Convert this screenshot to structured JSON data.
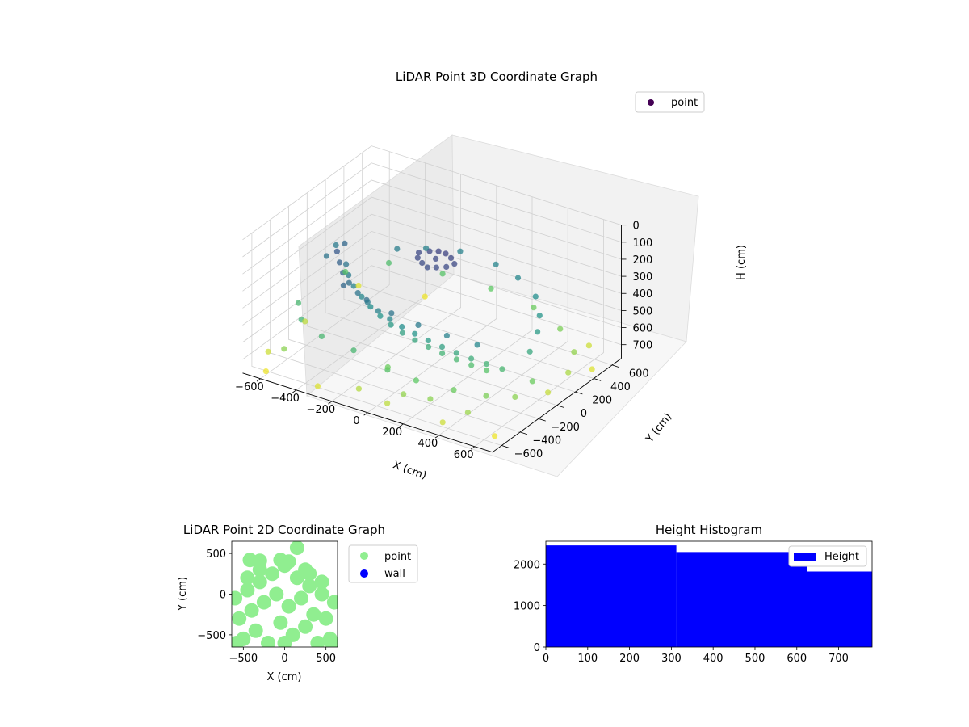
{
  "chart_data": [
    {
      "type": "scatter",
      "projection": "3d",
      "title": "LiDAR Point 3D Coordinate Graph",
      "xlabel": "X (cm)",
      "ylabel": "Y (cm)",
      "zlabel": "H (cm)",
      "xlim": [
        -700,
        700
      ],
      "ylim": [
        -700,
        700
      ],
      "zlim": [
        0,
        780
      ],
      "z_inverted": true,
      "xticks": [
        -600,
        -400,
        -200,
        0,
        200,
        400,
        600
      ],
      "yticks": [
        -600,
        -400,
        -200,
        0,
        200,
        400,
        600
      ],
      "zticks": [
        0,
        100,
        200,
        300,
        400,
        500,
        600,
        700
      ],
      "grid": true,
      "legend": {
        "position": "top-right",
        "entries": [
          "point"
        ]
      },
      "colormap": "viridis",
      "colorscale_range": [
        0,
        780
      ],
      "series": [
        {
          "name": "point",
          "marker_color": "#440154",
          "points": [
            [
              -100,
              50,
              170
            ],
            [
              -60,
              90,
              165
            ],
            [
              -20,
              110,
              160
            ],
            [
              20,
              110,
              160
            ],
            [
              60,
              90,
              165
            ],
            [
              100,
              50,
              170
            ],
            [
              -80,
              0,
              175
            ],
            [
              0,
              40,
              170
            ],
            [
              80,
              0,
              175
            ],
            [
              -40,
              -30,
              180
            ],
            [
              40,
              -30,
              180
            ],
            [
              0,
              -50,
              185
            ],
            [
              -470,
              -120,
              220
            ],
            [
              -420,
              -190,
              240
            ],
            [
              -370,
              -250,
              260
            ],
            [
              -310,
              -300,
              280
            ],
            [
              -240,
              -340,
              300
            ],
            [
              -170,
              -370,
              320
            ],
            [
              -100,
              -390,
              340
            ],
            [
              -30,
              -400,
              360
            ],
            [
              40,
              -405,
              380
            ],
            [
              110,
              -400,
              400
            ],
            [
              180,
              -390,
              420
            ],
            [
              250,
              -375,
              440
            ],
            [
              320,
              -355,
              460
            ],
            [
              390,
              -330,
              480
            ],
            [
              460,
              -300,
              500
            ],
            [
              530,
              -265,
              520
            ],
            [
              -440,
              -80,
              300
            ],
            [
              -390,
              -150,
              320
            ],
            [
              -330,
              -210,
              340
            ],
            [
              -260,
              -260,
              360
            ],
            [
              -190,
              -300,
              380
            ],
            [
              -120,
              -330,
              400
            ],
            [
              -50,
              -350,
              420
            ],
            [
              20,
              -360,
              440
            ],
            [
              90,
              -360,
              460
            ],
            [
              160,
              -350,
              480
            ],
            [
              230,
              -335,
              500
            ],
            [
              300,
              -315,
              520
            ],
            [
              370,
              -290,
              540
            ],
            [
              440,
              -260,
              560
            ],
            [
              -300,
              -380,
              260
            ],
            [
              -150,
              -420,
              280
            ],
            [
              0,
              -440,
              300
            ],
            [
              150,
              -440,
              320
            ],
            [
              300,
              -420,
              340
            ],
            [
              450,
              -380,
              360
            ],
            [
              -520,
              60,
              260
            ],
            [
              -560,
              -60,
              300
            ],
            [
              -600,
              120,
              320
            ],
            [
              -350,
              300,
              330
            ],
            [
              -250,
              420,
              340
            ],
            [
              -100,
              500,
              340
            ],
            [
              100,
              500,
              350
            ],
            [
              250,
              450,
              360
            ],
            [
              400,
              350,
              380
            ],
            [
              500,
              200,
              400
            ],
            [
              560,
              60,
              420
            ],
            [
              600,
              -100,
              460
            ],
            [
              -620,
              -250,
              520
            ],
            [
              -500,
              -450,
              500
            ],
            [
              -350,
              -520,
              520
            ],
            [
              -150,
              -560,
              520
            ],
            [
              50,
              -580,
              560
            ],
            [
              200,
              -560,
              580
            ],
            [
              380,
              -500,
              600
            ],
            [
              520,
              -420,
              620
            ],
            [
              620,
              -300,
              640
            ],
            [
              640,
              -150,
              600
            ],
            [
              -640,
              300,
              560
            ],
            [
              -500,
              500,
              540
            ],
            [
              -250,
              600,
              560
            ],
            [
              0,
              640,
              580
            ],
            [
              250,
              620,
              600
            ],
            [
              450,
              520,
              620
            ],
            [
              600,
              380,
              650
            ],
            [
              660,
              200,
              680
            ],
            [
              -660,
              -500,
              720
            ],
            [
              -600,
              -640,
              760
            ],
            [
              -300,
              -660,
              740
            ],
            [
              100,
              -680,
              700
            ],
            [
              400,
              -660,
              720
            ],
            [
              640,
              -560,
              760
            ],
            [
              680,
              420,
              740
            ],
            [
              560,
              620,
              720
            ],
            [
              -380,
              660,
              760
            ],
            [
              -680,
              520,
              740
            ],
            [
              160,
              -620,
              650
            ],
            [
              -80,
              -640,
              690
            ],
            [
              300,
              -600,
              640
            ],
            [
              500,
              -580,
              660
            ],
            [
              -540,
              -560,
              640
            ],
            [
              -660,
              -100,
              700
            ],
            [
              660,
              -20,
              710
            ],
            [
              0,
              -480,
              600
            ]
          ]
        }
      ]
    },
    {
      "type": "scatter",
      "title": "LiDAR Point 2D Coordinate Graph",
      "xlabel": "X (cm)",
      "ylabel": "Y (cm)",
      "xlim": [
        -640,
        640
      ],
      "ylim": [
        -650,
        650
      ],
      "xticks": [
        -500,
        0,
        500
      ],
      "yticks": [
        -500,
        0,
        500
      ],
      "legend": {
        "position": "right",
        "entries": [
          "point",
          "wall"
        ]
      },
      "series": [
        {
          "name": "point",
          "color": "#90ee90",
          "points": [
            [
              -600,
              -50
            ],
            [
              -550,
              -300
            ],
            [
              -500,
              -550
            ],
            [
              -450,
              50
            ],
            [
              -400,
              -200
            ],
            [
              -350,
              -450
            ],
            [
              -300,
              150
            ],
            [
              -250,
              -100
            ],
            [
              -200,
              -600
            ],
            [
              -150,
              250
            ],
            [
              -100,
              0
            ],
            [
              -50,
              -350
            ],
            [
              0,
              350
            ],
            [
              50,
              -150
            ],
            [
              100,
              -500
            ],
            [
              150,
              200
            ],
            [
              200,
              -50
            ],
            [
              250,
              -400
            ],
            [
              300,
              100
            ],
            [
              350,
              -250
            ],
            [
              400,
              -600
            ],
            [
              450,
              0
            ],
            [
              500,
              -300
            ],
            [
              550,
              -550
            ],
            [
              600,
              -100
            ],
            [
              -580,
              -600
            ],
            [
              580,
              -620
            ],
            [
              -300,
              300
            ],
            [
              300,
              250
            ],
            [
              0,
              -600
            ],
            [
              -420,
              420
            ],
            [
              -300,
              410
            ],
            [
              -50,
              420
            ],
            [
              50,
              400
            ],
            [
              150,
              570
            ],
            [
              250,
              300
            ],
            [
              -450,
              200
            ],
            [
              450,
              150
            ]
          ]
        },
        {
          "name": "wall",
          "color": "#0000ff",
          "points": []
        }
      ]
    },
    {
      "type": "histogram",
      "title": "Height Histogram",
      "xlim": [
        0,
        780
      ],
      "ylim": [
        0,
        2550
      ],
      "xticks": [
        0,
        100,
        200,
        300,
        400,
        500,
        600,
        700
      ],
      "yticks": [
        0,
        1000,
        2000
      ],
      "legend": {
        "position": "top-right",
        "entries": [
          "Height"
        ]
      },
      "color": "#0000ff",
      "bins": [
        {
          "start": 0,
          "end": 312,
          "count": 2450
        },
        {
          "start": 312,
          "end": 624,
          "count": 2290
        },
        {
          "start": 624,
          "end": 780,
          "count": 1820
        }
      ]
    }
  ]
}
